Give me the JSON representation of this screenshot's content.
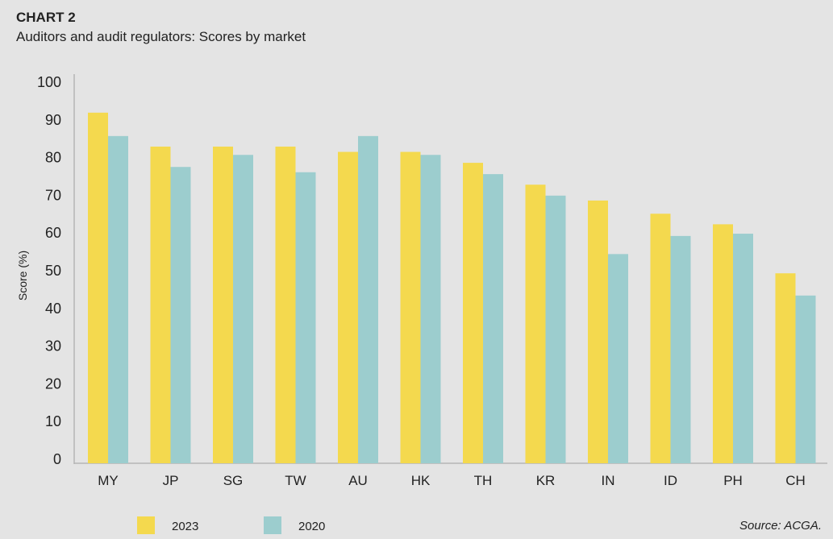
{
  "chart_data": {
    "type": "bar",
    "title": "CHART 2",
    "subtitle": "Auditors and audit regulators: Scores by market",
    "xlabel": "",
    "ylabel": "Score (%)",
    "ylim": [
      0,
      100
    ],
    "yticks": [
      0,
      10,
      20,
      30,
      40,
      50,
      60,
      70,
      80,
      90,
      100
    ],
    "grid": false,
    "legend_position": "bottom-left",
    "categories": [
      "MY",
      "JP",
      "SG",
      "TW",
      "AU",
      "HK",
      "TH",
      "KR",
      "IN",
      "ID",
      "PH",
      "CH"
    ],
    "series": [
      {
        "name": "2023",
        "color": "#f4d94e",
        "values": [
          91.7,
          82.7,
          82.7,
          82.7,
          81.3,
          81.3,
          78.4,
          72.6,
          68.4,
          64.9,
          62.1,
          49.1
        ]
      },
      {
        "name": "2020",
        "color": "#9ccdce",
        "values": [
          85.5,
          77.3,
          80.5,
          75.9,
          85.5,
          80.5,
          75.4,
          69.7,
          54.2,
          59.0,
          59.6,
          43.2
        ]
      }
    ],
    "source": "Source: ACGA."
  }
}
